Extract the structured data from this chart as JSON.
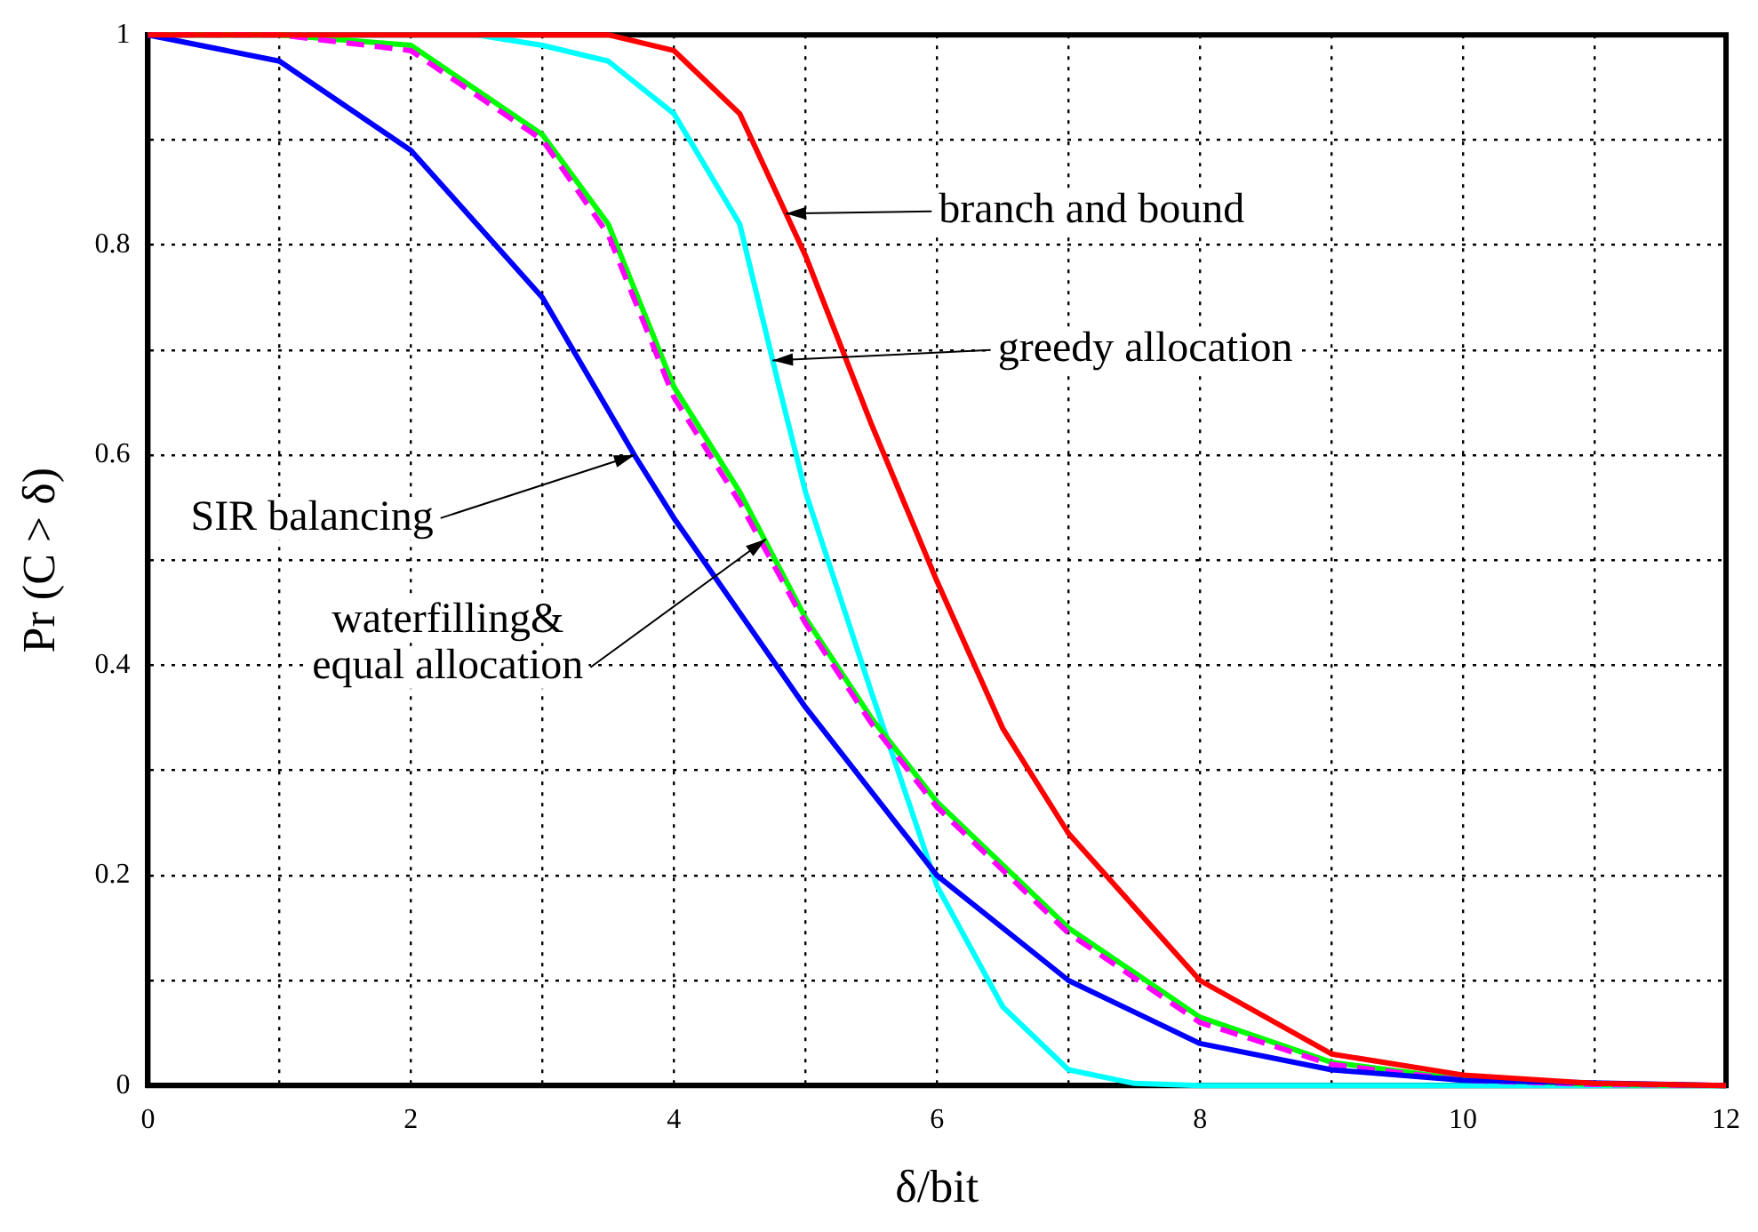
{
  "chart_data": {
    "type": "line",
    "xlabel": "δ/bit",
    "ylabel": "Pr (C > δ)",
    "xlim": [
      0,
      12
    ],
    "ylim": [
      0,
      1
    ],
    "xticks": [
      0,
      {
        "value": 1,
        "label": null
      },
      2,
      {
        "value": 3,
        "label": null
      },
      4,
      {
        "value": 5,
        "label": null
      },
      6,
      {
        "value": 7,
        "label": null
      },
      8,
      {
        "value": 9,
        "label": null
      },
      10,
      {
        "value": 11,
        "label": null
      },
      12
    ],
    "yticks": [
      0,
      {
        "value": 0.1,
        "label": null
      },
      0.2,
      {
        "value": 0.3,
        "label": null
      },
      0.4,
      {
        "value": 0.5,
        "label": null
      },
      0.6,
      {
        "value": 0.7,
        "label": null
      },
      0.8,
      {
        "value": 0.9,
        "label": null
      },
      1
    ],
    "grid": true,
    "legend": false,
    "marker": "none",
    "line_style": "solid",
    "series": [
      {
        "color": "#ff0000",
        "x": [
          0,
          3.5,
          4,
          4.5,
          5,
          5.5,
          6,
          6.5,
          7,
          8,
          9,
          10,
          11,
          12
        ],
        "values": [
          1,
          1,
          0.985,
          0.925,
          0.79,
          0.63,
          0.48,
          0.34,
          0.24,
          0.1,
          0.03,
          0.01,
          0.002,
          0
        ]
      },
      {
        "color": "#00ffff",
        "x": [
          0,
          2.5,
          3,
          3.5,
          4,
          4.5,
          4.8,
          5,
          5.5,
          6,
          6.5,
          7,
          7.5,
          8,
          12
        ],
        "values": [
          1,
          1,
          0.99,
          0.975,
          0.925,
          0.82,
          0.665,
          0.565,
          0.375,
          0.19,
          0.075,
          0.015,
          0.002,
          0,
          0
        ]
      },
      {
        "color": "#00ff00",
        "x": [
          0,
          1,
          2,
          3,
          3.5,
          4,
          4.5,
          5,
          5.5,
          6,
          7,
          8,
          9,
          10,
          11,
          12
        ],
        "values": [
          1,
          1,
          0.99,
          0.905,
          0.82,
          0.665,
          0.565,
          0.445,
          0.35,
          0.27,
          0.15,
          0.065,
          0.022,
          0.006,
          0.001,
          0
        ]
      },
      {
        "color": "#ff00ff",
        "line_style": "dashed",
        "x": [
          0,
          1,
          2,
          3,
          3.5,
          4,
          4.5,
          5,
          5.5,
          6,
          7,
          8,
          9,
          10,
          11,
          12
        ],
        "values": [
          1,
          1,
          0.985,
          0.9,
          0.81,
          0.655,
          0.555,
          0.44,
          0.345,
          0.265,
          0.145,
          0.06,
          0.02,
          0.005,
          0.001,
          0
        ]
      },
      {
        "color": "#0000ff",
        "x": [
          0,
          1,
          2,
          3,
          3.7,
          4,
          5,
          6,
          7,
          8,
          9,
          10,
          12
        ],
        "values": [
          1,
          0.975,
          0.89,
          0.75,
          0.6,
          0.54,
          0.36,
          0.2,
          0.1,
          0.04,
          0.015,
          0.005,
          0
        ]
      }
    ],
    "annotations": [
      {
        "text": "branch and bound",
        "x": 4.85,
        "y": 0.83
      },
      {
        "text": "greedy allocation",
        "x": 4.75,
        "y": 0.69
      },
      {
        "text": "SIR balancing",
        "x": 3.7,
        "y": 0.6
      },
      {
        "text": "waterfilling&\nequal allocation",
        "x": 4.7,
        "y": 0.52
      }
    ]
  }
}
